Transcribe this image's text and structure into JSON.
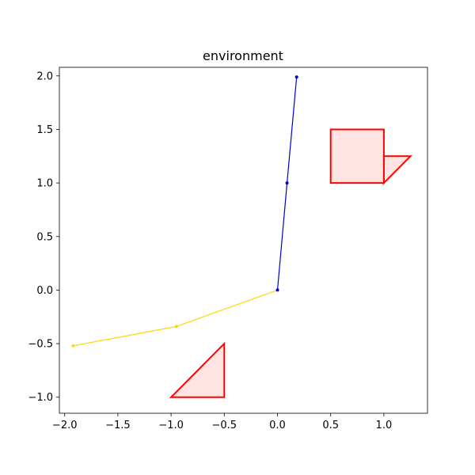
{
  "chart_data": {
    "type": "line",
    "title": "environment",
    "xlabel": "",
    "ylabel": "",
    "xlim": [
      -2.05,
      1.41
    ],
    "ylim": [
      -1.15,
      2.08
    ],
    "grid": false,
    "x_ticks": [
      {
        "value": -2.0,
        "label": "−2.0"
      },
      {
        "value": -1.5,
        "label": "−1.5"
      },
      {
        "value": -1.0,
        "label": "−1.0"
      },
      {
        "value": -0.5,
        "label": "−0.5"
      },
      {
        "value": 0.0,
        "label": "0.0"
      },
      {
        "value": 0.5,
        "label": "0.5"
      },
      {
        "value": 1.0,
        "label": "1.0"
      }
    ],
    "y_ticks": [
      {
        "value": -1.0,
        "label": "−1.0"
      },
      {
        "value": -0.5,
        "label": "−0.5"
      },
      {
        "value": 0.0,
        "label": "0.0"
      },
      {
        "value": 0.5,
        "label": "0.5"
      },
      {
        "value": 1.0,
        "label": "1.0"
      },
      {
        "value": 1.5,
        "label": "1.5"
      },
      {
        "value": 2.0,
        "label": "2.0"
      }
    ],
    "series": [
      {
        "color": "#ffd700",
        "points": [
          [
            0.0,
            0.0
          ],
          [
            -0.95,
            -0.34
          ],
          [
            -1.92,
            -0.52
          ]
        ]
      },
      {
        "color": "#0000cd",
        "points": [
          [
            0.0,
            0.0
          ],
          [
            0.09,
            1.0
          ],
          [
            0.18,
            1.99
          ]
        ]
      }
    ],
    "obstacles": [
      {
        "shape": "rect",
        "points": [
          [
            0.5,
            1.0
          ],
          [
            1.0,
            1.0
          ],
          [
            1.0,
            1.5
          ],
          [
            0.5,
            1.5
          ]
        ],
        "edge": "#ff0000",
        "fill": "#ffe4e1"
      },
      {
        "shape": "triangle",
        "points": [
          [
            1.0,
            1.0
          ],
          [
            1.25,
            1.25
          ],
          [
            1.0,
            1.25
          ]
        ],
        "edge": "#ff0000",
        "fill": "#ffe4e1"
      },
      {
        "shape": "triangle",
        "points": [
          [
            -1.0,
            -1.0
          ],
          [
            -0.5,
            -1.0
          ],
          [
            -0.5,
            -0.5
          ]
        ],
        "edge": "#ff0000",
        "fill": "#ffe4e1"
      }
    ]
  }
}
